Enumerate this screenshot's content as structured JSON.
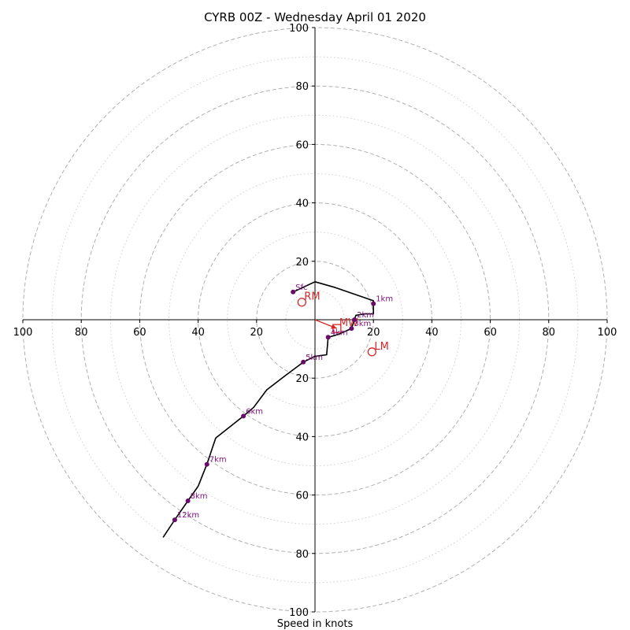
{
  "chart_data": {
    "type": "hodograph",
    "title": "CYRB 00Z - Wednesday April 01 2020",
    "xlabel": "Speed in knots",
    "range": [
      -100,
      100
    ],
    "tick_labels": [
      "100",
      "80",
      "60",
      "40",
      "20",
      "20",
      "40",
      "60",
      "80",
      "100"
    ],
    "tick_values": [
      -100,
      -80,
      -60,
      -40,
      -20,
      20,
      40,
      60,
      80,
      100
    ],
    "ring_labels": [
      "20",
      "40",
      "60",
      "80",
      "100"
    ],
    "ring_values": [
      20,
      40,
      60,
      80,
      100
    ],
    "rings_dashed": [
      20,
      40,
      60,
      80,
      100
    ],
    "rings_dotted": [
      10,
      30,
      50,
      70,
      90
    ],
    "grid": true,
    "colors": {
      "trace": "#000000",
      "markers": "#6a0a6a",
      "marker_labels": "#7b0f7b",
      "storm_motion": "#d62728",
      "grid": "#b0b0b0"
    },
    "trace": [
      [
        -7.5,
        9.5
      ],
      [
        0,
        13
      ],
      [
        7,
        11
      ],
      [
        20,
        6.5
      ],
      [
        20,
        3
      ],
      [
        20,
        2
      ],
      [
        17,
        2
      ],
      [
        14,
        1.5
      ],
      [
        12.5,
        -3
      ],
      [
        8,
        -5
      ],
      [
        4.5,
        -6
      ],
      [
        4,
        -12
      ],
      [
        0,
        -12.5
      ],
      [
        -4,
        -14.5
      ],
      [
        -10,
        -19
      ],
      [
        -16.5,
        -24
      ],
      [
        -21,
        -30
      ],
      [
        -24.5,
        -33
      ],
      [
        -34,
        -40.5
      ],
      [
        -37,
        -49.5
      ],
      [
        -40,
        -57
      ],
      [
        -43.5,
        -62
      ],
      [
        -48,
        -68.5
      ],
      [
        -52,
        -74.5
      ]
    ],
    "height_markers": [
      {
        "label": "Sfc",
        "u": -7.5,
        "v": 9.5
      },
      {
        "label": "1km",
        "u": 20,
        "v": 5.5
      },
      {
        "label": "2km",
        "u": 13.5,
        "v": 0
      },
      {
        "label": "3km",
        "u": 12.5,
        "v": -3
      },
      {
        "label": "4km",
        "u": 4.5,
        "v": -6
      },
      {
        "label": "5km",
        "u": -4,
        "v": -14.5
      },
      {
        "label": "6km",
        "u": -24.5,
        "v": -33
      },
      {
        "label": "7km",
        "u": -37,
        "v": -49.5
      },
      {
        "label": "8km",
        "u": -43.5,
        "v": -62
      },
      {
        "label": "12km",
        "u": -48,
        "v": -68.5
      }
    ],
    "storm_motion": [
      {
        "label": "RM",
        "u": -4.5,
        "v": 6,
        "marker": "open-circle"
      },
      {
        "label": "LM",
        "u": 19.5,
        "v": -11,
        "marker": "open-circle"
      },
      {
        "label": "MW",
        "u": 7.5,
        "v": -3,
        "marker": "open-square"
      }
    ],
    "mean_wind_vector": {
      "from": [
        0,
        0
      ],
      "to": [
        7.5,
        -3
      ]
    }
  }
}
